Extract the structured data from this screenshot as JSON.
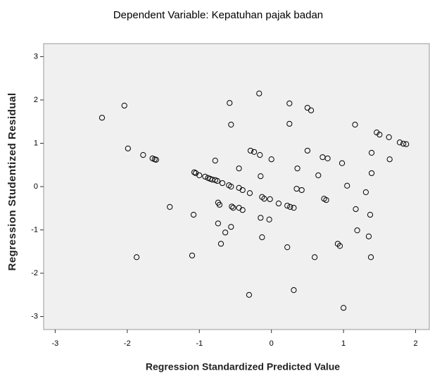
{
  "chart_data": {
    "type": "scatter",
    "title": "Dependent Variable: Kepatuhan pajak badan",
    "x_label": "Regression Standardized Predicted Value",
    "y_label": "Regression Studentized Residual",
    "x": [
      -2.35,
      -2.04,
      -1.99,
      -1.78,
      -1.65,
      -1.62,
      -1.6,
      -1.41,
      -1.87,
      -1.1,
      -1.08,
      -1.07,
      -1.05,
      -1.0,
      -0.92,
      -0.88,
      -0.85,
      -0.82,
      -0.78,
      -0.75,
      -0.78,
      -0.68,
      -0.74,
      -0.72,
      -0.74,
      -0.7,
      -0.64,
      -0.58,
      -0.56,
      -0.59,
      -0.56,
      -0.55,
      -0.53,
      -0.56,
      -0.45,
      -0.45,
      -0.4,
      -0.45,
      -0.4,
      -0.29,
      -0.24,
      -0.3,
      -0.31,
      -0.17,
      -0.16,
      -0.15,
      -0.13,
      -0.1,
      -0.15,
      -0.13,
      -0.03,
      -0.02,
      0,
      0.1,
      0.22,
      0.26,
      0.31,
      0.22,
      0.25,
      0.25,
      0.31,
      0.35,
      0.42,
      0.36,
      0.5,
      0.55,
      0.5,
      0.6,
      0.65,
      0.71,
      0.78,
      0.73,
      0.76,
      0.92,
      0.95,
      0.98,
      1.0,
      1.05,
      1.16,
      1.17,
      1.19,
      1.31,
      1.35,
      1.37,
      1.38,
      1.39,
      1.39,
      1.46,
      1.5,
      1.63,
      1.64,
      1.78,
      1.83,
      1.87
    ],
    "y": [
      1.59,
      1.87,
      0.88,
      0.73,
      0.65,
      0.63,
      0.62,
      -0.47,
      -1.63,
      -1.59,
      -0.65,
      0.33,
      0.31,
      0.26,
      0.23,
      0.2,
      0.18,
      0.16,
      0.15,
      0.13,
      0.6,
      0.08,
      -0.37,
      -0.42,
      -0.85,
      -1.32,
      -1.06,
      1.93,
      1.43,
      0.03,
      0.0,
      -0.46,
      -0.49,
      -0.93,
      0.42,
      -0.03,
      -0.08,
      -0.49,
      -0.54,
      0.83,
      0.8,
      -0.15,
      -2.5,
      2.15,
      0.73,
      0.24,
      -0.24,
      -0.28,
      -0.72,
      -1.17,
      -0.76,
      -0.29,
      0.63,
      -0.39,
      -0.44,
      -0.47,
      -0.49,
      -1.4,
      1.92,
      1.45,
      -2.39,
      -0.05,
      -0.08,
      0.42,
      1.82,
      1.76,
      0.83,
      -1.63,
      0.26,
      0.68,
      0.65,
      -0.28,
      -0.31,
      -1.32,
      -1.37,
      0.54,
      -2.8,
      0.02,
      1.43,
      -0.52,
      -1.01,
      -0.13,
      -1.15,
      -0.65,
      -1.63,
      0.78,
      0.31,
      1.25,
      1.2,
      1.14,
      0.63,
      1.02,
      0.99,
      0.98
    ],
    "color": "#000000",
    "xlim": [
      -3.16,
      2.19
    ],
    "ylim": [
      -3.3,
      3.3
    ],
    "xticks": [
      -3,
      -2,
      -1,
      0,
      1,
      2
    ],
    "yticks": [
      -3,
      -2,
      -1,
      0,
      1,
      2,
      3
    ],
    "background": "#f0f0f0"
  }
}
